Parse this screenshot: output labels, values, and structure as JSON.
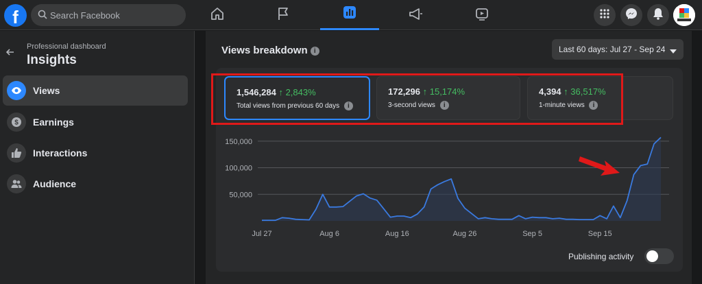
{
  "header": {
    "logo": "f",
    "search_placeholder": "Search Facebook",
    "nav_tabs": [
      {
        "icon": "home-icon",
        "active": false
      },
      {
        "icon": "flag-icon",
        "active": false
      },
      {
        "icon": "insights-icon",
        "active": true
      },
      {
        "icon": "megaphone-icon",
        "active": false
      },
      {
        "icon": "video-icon",
        "active": false
      }
    ],
    "right_icons": [
      "menu-grid-icon",
      "messenger-icon",
      "bell-icon"
    ],
    "accent_color": "#2d88ff"
  },
  "sidebar": {
    "breadcrumb": "Professional dashboard",
    "title": "Insights",
    "items": [
      {
        "label": "Views",
        "icon": "eye-icon",
        "active": true
      },
      {
        "label": "Earnings",
        "icon": "dollar-icon",
        "active": false
      },
      {
        "label": "Interactions",
        "icon": "thumbs-up-icon",
        "active": false
      },
      {
        "label": "Audience",
        "icon": "people-icon",
        "active": false
      }
    ]
  },
  "main": {
    "section_title": "Views breakdown",
    "date_range": "Last 60 days: Jul 27 - Sep 24",
    "metrics": [
      {
        "value": "1,546,284",
        "change": "↑ 2,843%",
        "label": "Total views from previous 60 days",
        "selected": true
      },
      {
        "value": "172,296",
        "change": "↑ 15,174%",
        "label": "3-second views",
        "selected": false
      },
      {
        "value": "4,394",
        "change": "↑ 36,517%",
        "label": "1-minute views",
        "selected": false
      }
    ],
    "publishing_activity_label": "Publishing activity",
    "publishing_activity_on": false,
    "positive_color": "#45bd62",
    "highlight_color": "#e01919"
  },
  "chart_data": {
    "type": "area",
    "x_tick_labels": [
      "Jul 27",
      "Aug 6",
      "Aug 16",
      "Aug 26",
      "Sep 5",
      "Sep 15"
    ],
    "y_tick_labels": [
      "50,000",
      "100,000",
      "150,000"
    ],
    "ylim": [
      0,
      160000
    ],
    "grid": true,
    "series": [
      {
        "color": "#3a7ae0",
        "values": [
          1000,
          1000,
          1000,
          6000,
          5000,
          3000,
          2500,
          2000,
          22000,
          50000,
          26000,
          26000,
          27000,
          37000,
          47000,
          51000,
          43000,
          39000,
          23000,
          7000,
          9000,
          9000,
          6000,
          13000,
          26000,
          60000,
          68000,
          74000,
          79000,
          42000,
          24000,
          14000,
          4000,
          6000,
          4000,
          3000,
          3000,
          3000,
          10000,
          4000,
          7000,
          6000,
          6000,
          4000,
          5000,
          3000,
          3000,
          2500,
          2500,
          2500,
          10000,
          4000,
          28000,
          6000,
          38000,
          87000,
          104000,
          107000,
          145000,
          157000
        ]
      }
    ]
  }
}
